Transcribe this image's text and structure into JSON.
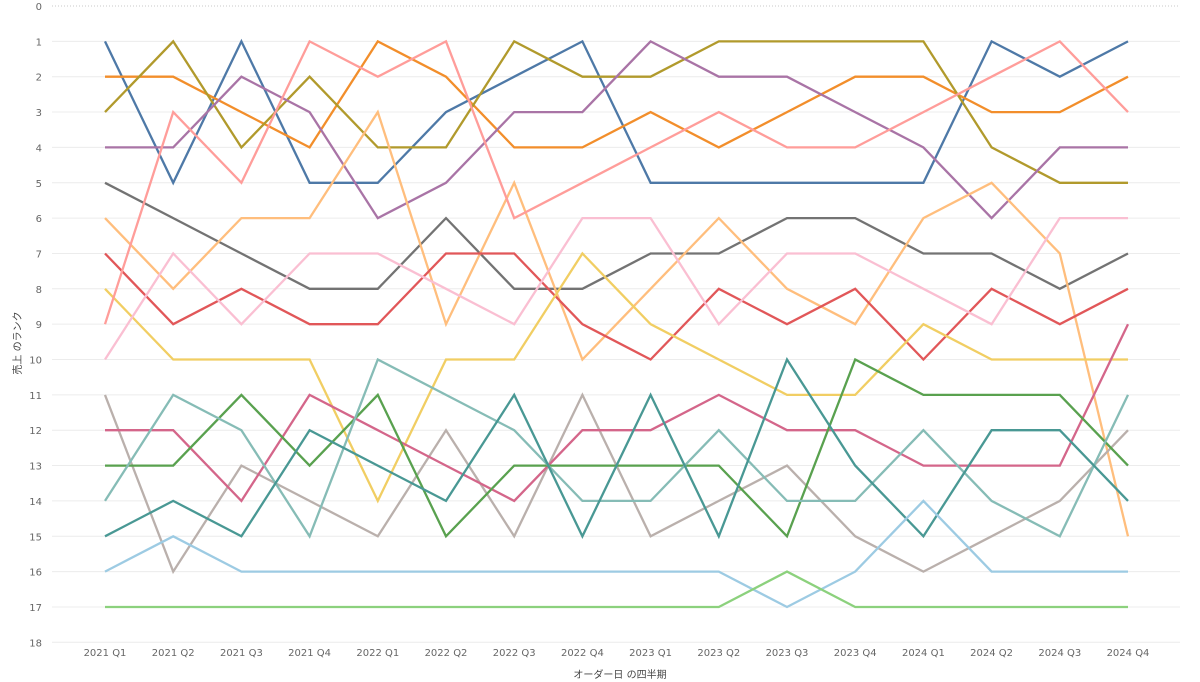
{
  "chart_data": {
    "type": "line",
    "xlabel": "オーダー日 の四半期",
    "ylabel": "売上 のランク",
    "x": [
      "2021 Q1",
      "2021 Q2",
      "2021 Q3",
      "2021 Q4",
      "2022 Q1",
      "2022 Q2",
      "2022 Q3",
      "2022 Q4",
      "2023 Q1",
      "2023 Q2",
      "2023 Q3",
      "2023 Q4",
      "2024 Q1",
      "2024 Q2",
      "2024 Q3",
      "2024 Q4"
    ],
    "ylim": [
      0,
      18
    ],
    "y_reversed": true,
    "y_ticks": [
      "0",
      "1",
      "2",
      "3",
      "4",
      "5",
      "6",
      "7",
      "8",
      "9",
      "10",
      "11",
      "12",
      "13",
      "14",
      "15",
      "16",
      "17",
      "18"
    ],
    "grid": true,
    "series": [
      {
        "color": "#4e79a7",
        "values": [
          1,
          5,
          1,
          5,
          5,
          3,
          2,
          1,
          5,
          5,
          5,
          5,
          5,
          1,
          2,
          1
        ]
      },
      {
        "color": "#f28e2b",
        "values": [
          2,
          2,
          3,
          4,
          1,
          2,
          4,
          4,
          3,
          4,
          3,
          2,
          2,
          3,
          3,
          2
        ]
      },
      {
        "color": "#b19a2c",
        "values": [
          3,
          1,
          4,
          2,
          4,
          4,
          1,
          2,
          2,
          1,
          1,
          1,
          1,
          4,
          5,
          5
        ]
      },
      {
        "color": "#a974a6",
        "values": [
          4,
          4,
          2,
          3,
          6,
          5,
          3,
          3,
          1,
          2,
          2,
          3,
          4,
          6,
          4,
          4
        ]
      },
      {
        "color": "#737373",
        "values": [
          5,
          6,
          7,
          8,
          8,
          6,
          8,
          8,
          7,
          7,
          6,
          6,
          7,
          7,
          8,
          7
        ]
      },
      {
        "color": "#ffbe7d",
        "values": [
          6,
          8,
          6,
          6,
          3,
          9,
          5,
          10,
          8,
          6,
          8,
          9,
          6,
          5,
          7,
          15
        ]
      },
      {
        "color": "#e15759",
        "values": [
          7,
          9,
          8,
          9,
          9,
          7,
          7,
          9,
          10,
          8,
          9,
          8,
          10,
          8,
          9,
          8
        ]
      },
      {
        "color": "#f1ce63",
        "values": [
          8,
          10,
          10,
          10,
          14,
          10,
          10,
          7,
          9,
          10,
          11,
          11,
          9,
          10,
          10,
          10
        ]
      },
      {
        "color": "#ff9d9a",
        "values": [
          9,
          3,
          5,
          1,
          2,
          1,
          6,
          5,
          4,
          3,
          4,
          4,
          3,
          2,
          1,
          3
        ]
      },
      {
        "color": "#fabfd2",
        "values": [
          10,
          7,
          9,
          7,
          7,
          8,
          9,
          6,
          6,
          9,
          7,
          7,
          8,
          9,
          6,
          6
        ]
      },
      {
        "color": "#bab0ac",
        "values": [
          11,
          16,
          13,
          14,
          15,
          12,
          15,
          11,
          15,
          14,
          13,
          15,
          16,
          15,
          14,
          12
        ]
      },
      {
        "color": "#d4668a",
        "values": [
          12,
          12,
          14,
          11,
          12,
          13,
          14,
          12,
          12,
          11,
          12,
          12,
          13,
          13,
          13,
          9
        ]
      },
      {
        "color": "#59a14f",
        "values": [
          13,
          13,
          11,
          13,
          11,
          15,
          13,
          13,
          13,
          13,
          15,
          10,
          11,
          11,
          11,
          13
        ]
      },
      {
        "color": "#86bcb6",
        "values": [
          14,
          11,
          12,
          15,
          10,
          11,
          12,
          14,
          14,
          12,
          14,
          14,
          12,
          14,
          15,
          11
        ]
      },
      {
        "color": "#499894",
        "values": [
          15,
          14,
          15,
          12,
          13,
          14,
          11,
          15,
          11,
          15,
          10,
          13,
          15,
          12,
          12,
          14
        ]
      },
      {
        "color": "#9dcbe3",
        "values": [
          16,
          15,
          16,
          16,
          16,
          16,
          16,
          16,
          16,
          16,
          17,
          16,
          14,
          16,
          16,
          16
        ]
      },
      {
        "color": "#8cd17d",
        "values": [
          17,
          17,
          17,
          17,
          17,
          17,
          17,
          17,
          17,
          17,
          16,
          17,
          17,
          17,
          17,
          17
        ]
      }
    ]
  }
}
